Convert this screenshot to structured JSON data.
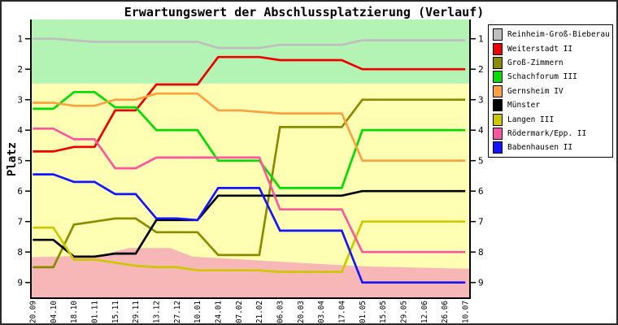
{
  "chart_data": {
    "type": "line",
    "title": "Erwartungswert der Abschlussplatzierung (Verlauf)",
    "ylabel": "Platz",
    "y_axis_inverted": true,
    "ylim": [
      0.4,
      9.5
    ],
    "y_ticks": [
      1,
      2,
      3,
      4,
      5,
      6,
      7,
      8,
      9
    ],
    "x_labels": [
      "20.09",
      "04.10",
      "18.10",
      "01.11",
      "15.11",
      "29.11",
      "13.12",
      "27.12",
      "10.01",
      "24.01",
      "07.02",
      "21.02",
      "06.03",
      "20.03",
      "03.04",
      "17.04",
      "01.05",
      "15.05",
      "29.05",
      "12.06",
      "26.06",
      "10.07"
    ],
    "legend_position": "right-outside",
    "grid": false,
    "axis_color": "#000000",
    "series": [
      {
        "name": "Reinheim-Groß-Bieberau",
        "color": "#bebebe",
        "values": [
          1.0,
          1.0,
          1.05,
          1.1,
          1.1,
          1.1,
          1.1,
          1.1,
          1.1,
          1.3,
          1.3,
          1.3,
          1.2,
          1.2,
          1.2,
          1.2,
          1.05,
          1.05,
          1.05,
          1.05,
          1.05,
          1.05
        ]
      },
      {
        "name": "Weiterstadt II",
        "color": "#ee0000",
        "values": [
          4.7,
          4.7,
          4.55,
          4.55,
          3.35,
          3.35,
          2.5,
          2.5,
          2.5,
          1.6,
          1.6,
          1.6,
          1.7,
          1.7,
          1.7,
          1.7,
          2.0,
          2.0,
          2.0,
          2.0,
          2.0,
          2.0
        ]
      },
      {
        "name": "Groß-Zimmern",
        "color": "#8b8b00",
        "values": [
          8.5,
          8.5,
          7.1,
          7.0,
          6.9,
          6.9,
          7.35,
          7.35,
          7.35,
          8.1,
          8.1,
          8.1,
          3.9,
          3.9,
          3.9,
          3.9,
          3.0,
          3.0,
          3.0,
          3.0,
          3.0,
          3.0
        ]
      },
      {
        "name": "Schachforum III",
        "color": "#00dd00",
        "values": [
          3.3,
          3.3,
          2.75,
          2.75,
          3.25,
          3.25,
          4.0,
          4.0,
          4.0,
          5.0,
          5.0,
          5.0,
          5.9,
          5.9,
          5.9,
          5.9,
          4.0,
          4.0,
          4.0,
          4.0,
          4.0,
          4.0
        ]
      },
      {
        "name": "Gernsheim IV",
        "color": "#ffa040",
        "values": [
          3.1,
          3.1,
          3.2,
          3.2,
          3.0,
          3.0,
          2.8,
          2.8,
          2.8,
          3.35,
          3.35,
          3.4,
          3.45,
          3.45,
          3.45,
          3.45,
          5.0,
          5.0,
          5.0,
          5.0,
          5.0,
          5.0
        ]
      },
      {
        "name": "Münster",
        "color": "#000000",
        "values": [
          7.6,
          7.6,
          8.15,
          8.15,
          8.05,
          8.05,
          6.95,
          6.95,
          6.95,
          6.15,
          6.15,
          6.15,
          6.15,
          6.15,
          6.15,
          6.15,
          6.0,
          6.0,
          6.0,
          6.0,
          6.0,
          6.0
        ]
      },
      {
        "name": "Langen III",
        "color": "#cdc700",
        "values": [
          7.2,
          7.2,
          8.25,
          8.25,
          8.35,
          8.45,
          8.5,
          8.5,
          8.6,
          8.6,
          8.6,
          8.6,
          8.65,
          8.65,
          8.65,
          8.65,
          7.0,
          7.0,
          7.0,
          7.0,
          7.0,
          7.0
        ]
      },
      {
        "name": "Rödermark/Epp. II",
        "color": "#ff55a0",
        "values": [
          3.95,
          3.95,
          4.3,
          4.3,
          5.25,
          5.25,
          4.9,
          4.9,
          4.9,
          4.9,
          4.9,
          4.9,
          6.6,
          6.6,
          6.6,
          6.6,
          8.0,
          8.0,
          8.0,
          8.0,
          8.0,
          8.0
        ]
      },
      {
        "name": "Babenhausen II",
        "color": "#1414ff",
        "values": [
          5.45,
          5.45,
          5.7,
          5.7,
          6.1,
          6.1,
          6.9,
          6.9,
          6.95,
          5.9,
          5.9,
          5.9,
          7.3,
          7.3,
          7.3,
          7.3,
          9.0,
          9.0,
          9.0,
          9.0,
          9.0,
          9.0
        ]
      }
    ],
    "zones": {
      "top_zone": {
        "color": "#b3f3b3",
        "from_platz": 0.4,
        "to_platz": 2.47
      },
      "middle_zone": {
        "color": "#ffffb3",
        "from_platz": 2.47,
        "to_platz": 9.51
      },
      "bottom_zone": {
        "color": "#f8b7b7",
        "to_platz": 9.51,
        "boundary_points": [
          {
            "t": 0.0,
            "platz": 8.17
          },
          {
            "t": 0.155,
            "platz": 8.11
          },
          {
            "t": 0.224,
            "platz": 7.87
          },
          {
            "t": 0.318,
            "platz": 7.87
          },
          {
            "t": 0.368,
            "platz": 8.15
          },
          {
            "t": 0.525,
            "platz": 8.28
          },
          {
            "t": 0.654,
            "platz": 8.39
          },
          {
            "t": 0.756,
            "platz": 8.47
          },
          {
            "t": 1.0,
            "platz": 8.55
          }
        ]
      }
    }
  }
}
